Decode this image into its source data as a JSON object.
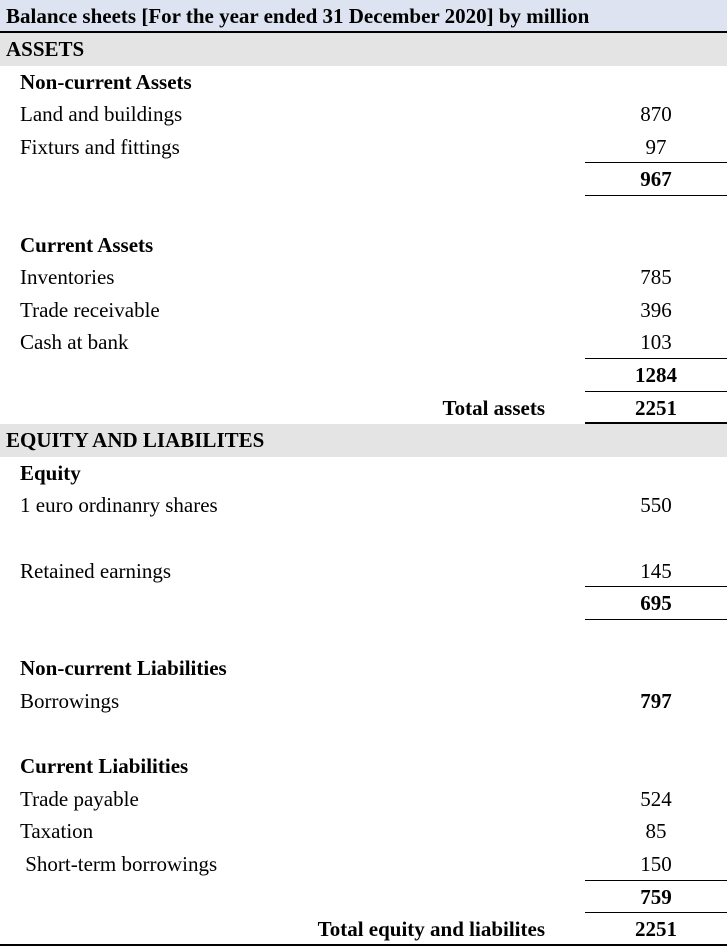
{
  "title": "Balance sheets [For the year ended 31 December 2020] by million",
  "rows": [
    {
      "type": "section",
      "label": "ASSETS",
      "value": ""
    },
    {
      "type": "heading",
      "label": "Non-current Assets",
      "value": ""
    },
    {
      "type": "item",
      "label": "Land and buildings",
      "value": "870"
    },
    {
      "type": "item",
      "label": "Fixturs and fittings",
      "value": "97"
    },
    {
      "type": "subtotal",
      "label": "",
      "value": "967"
    },
    {
      "type": "blank",
      "label": "",
      "value": ""
    },
    {
      "type": "heading",
      "label": "Current Assets",
      "value": ""
    },
    {
      "type": "item",
      "label": "Inventories",
      "value": "785"
    },
    {
      "type": "item",
      "label": "Trade receivable",
      "value": "396"
    },
    {
      "type": "item",
      "label": "Cash at bank",
      "value": "103"
    },
    {
      "type": "subtotal",
      "label": "",
      "value": "1284"
    },
    {
      "type": "total",
      "label": "Total assets",
      "value": "2251"
    },
    {
      "type": "section",
      "label": "EQUITY AND LIABILITES",
      "value": ""
    },
    {
      "type": "heading",
      "label": "Equity",
      "value": ""
    },
    {
      "type": "item",
      "label": "1 euro ordinanry shares",
      "value": "550"
    },
    {
      "type": "blank",
      "label": "",
      "value": ""
    },
    {
      "type": "item",
      "label": "Retained earnings",
      "value": "145"
    },
    {
      "type": "subtotal",
      "label": "",
      "value": "695"
    },
    {
      "type": "blank",
      "label": "",
      "value": ""
    },
    {
      "type": "heading",
      "label": "Non-current Liabilities",
      "value": ""
    },
    {
      "type": "item-bold",
      "label": "Borrowings",
      "value": "797"
    },
    {
      "type": "blank",
      "label": "",
      "value": ""
    },
    {
      "type": "heading",
      "label": "Current Liabilities",
      "value": ""
    },
    {
      "type": "item",
      "label": "Trade payable",
      "value": "524"
    },
    {
      "type": "item",
      "label": "Taxation",
      "value": "85"
    },
    {
      "type": "item",
      "label": " Short-term borrowings",
      "value": "150"
    },
    {
      "type": "subtotal",
      "label": "",
      "value": "759"
    },
    {
      "type": "total",
      "label": "Total equity and liabilites",
      "value": "2251"
    }
  ]
}
